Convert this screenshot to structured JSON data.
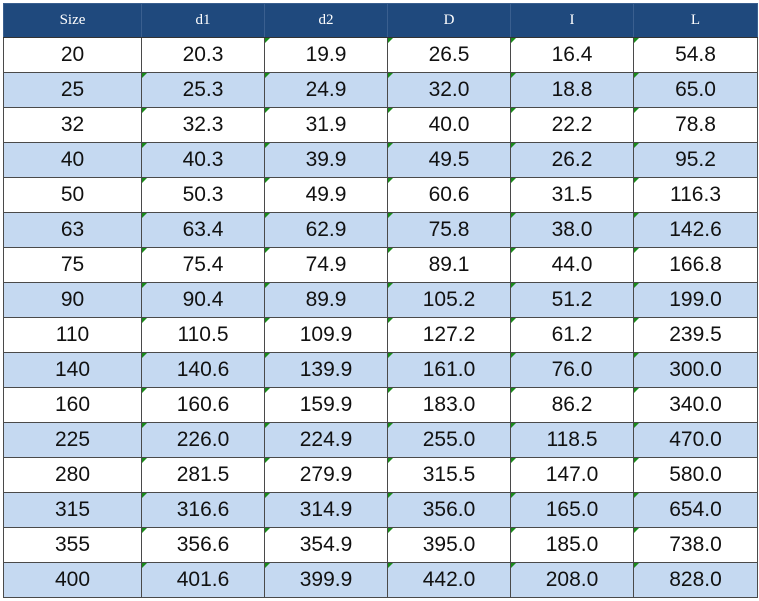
{
  "table": {
    "header": [
      "Size",
      "d1",
      "d2",
      "D",
      "I",
      "L"
    ],
    "rows": [
      [
        "20",
        "20.3",
        "19.9",
        "26.5",
        "16.4",
        "54.8"
      ],
      [
        "25",
        "25.3",
        "24.9",
        "32.0",
        "18.8",
        "65.0"
      ],
      [
        "32",
        "32.3",
        "31.9",
        "40.0",
        "22.2",
        "78.8"
      ],
      [
        "40",
        "40.3",
        "39.9",
        "49.5",
        "26.2",
        "95.2"
      ],
      [
        "50",
        "50.3",
        "49.9",
        "60.6",
        "31.5",
        "116.3"
      ],
      [
        "63",
        "63.4",
        "62.9",
        "75.8",
        "38.0",
        "142.6"
      ],
      [
        "75",
        "75.4",
        "74.9",
        "89.1",
        "44.0",
        "166.8"
      ],
      [
        "90",
        "90.4",
        "89.9",
        "105.2",
        "51.2",
        "199.0"
      ],
      [
        "110",
        "110.5",
        "109.9",
        "127.2",
        "61.2",
        "239.5"
      ],
      [
        "140",
        "140.6",
        "139.9",
        "161.0",
        "76.0",
        "300.0"
      ],
      [
        "160",
        "160.6",
        "159.9",
        "183.0",
        "86.2",
        "340.0"
      ],
      [
        "225",
        "226.0",
        "224.9",
        "255.0",
        "118.5",
        "470.0"
      ],
      [
        "280",
        "281.5",
        "279.9",
        "315.5",
        "147.0",
        "580.0"
      ],
      [
        "315",
        "316.6",
        "314.9",
        "356.0",
        "165.0",
        "654.0"
      ],
      [
        "355",
        "356.6",
        "354.9",
        "395.0",
        "185.0",
        "738.0"
      ],
      [
        "400",
        "401.6",
        "399.9",
        "442.0",
        "208.0",
        "828.0"
      ]
    ]
  }
}
